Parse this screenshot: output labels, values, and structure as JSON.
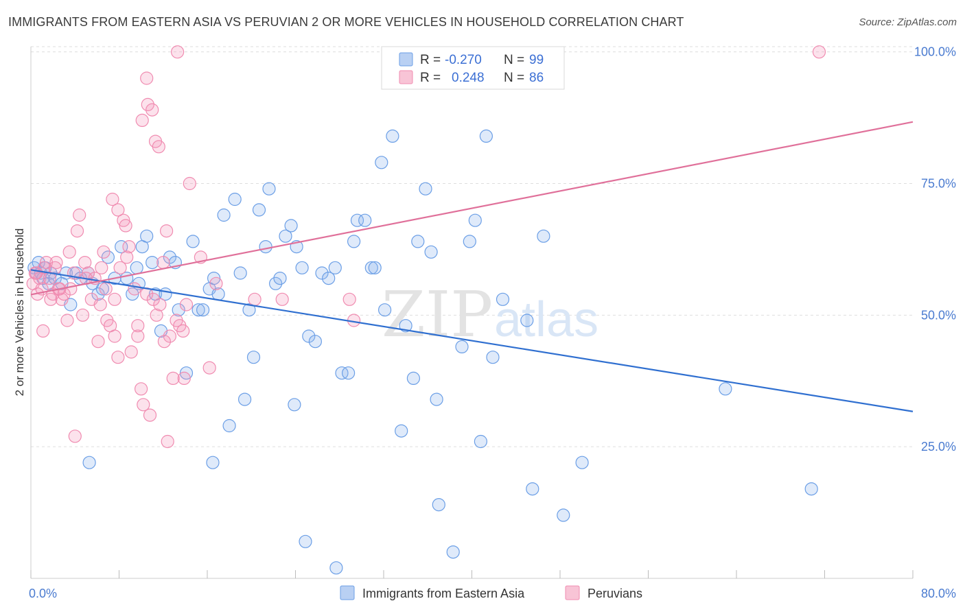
{
  "title": "IMMIGRANTS FROM EASTERN ASIA VS PERUVIAN 2 OR MORE VEHICLES IN HOUSEHOLD CORRELATION CHART",
  "source": "Source: ZipAtlas.com",
  "watermark": {
    "zip": "ZIP",
    "atlas": "atlas"
  },
  "colors": {
    "blue": "#6a9ee6",
    "blue_line": "#2f6fd0",
    "pink": "#f08bb0",
    "pink_line": "#e0709a",
    "grid": "#dddddd",
    "axis_label": "#4a7bd0"
  },
  "legend": {
    "rows": [
      {
        "r_label": "R =",
        "r_value": "-0.270",
        "n_label": "N =",
        "n_value": "99",
        "color": "blue"
      },
      {
        "r_label": "R =",
        "r_value": "0.248",
        "n_label": "N =",
        "n_value": "86",
        "color": "pink"
      }
    ]
  },
  "chart_data": {
    "type": "scatter",
    "title": "IMMIGRANTS FROM EASTERN ASIA VS PERUVIAN 2 OR MORE VEHICLES IN HOUSEHOLD CORRELATION CHART",
    "xlabel": "",
    "ylabel": "2 or more Vehicles in Household",
    "xlim": [
      0,
      80
    ],
    "ylim": [
      0,
      101
    ],
    "x_tick_labels": [
      "0.0%",
      "80.0%"
    ],
    "y_ticks": [
      25,
      50,
      75,
      100
    ],
    "y_tick_labels": [
      "25.0%",
      "50.0%",
      "75.0%",
      "100.0%"
    ],
    "grid": true,
    "legend_position": "bottom",
    "series": [
      {
        "name": "Immigrants from Eastern Asia",
        "color": "blue",
        "trend": [
          [
            0,
            58.6
          ],
          [
            80,
            31.7
          ]
        ],
        "points": [
          [
            0.3,
            59
          ],
          [
            0.5,
            58
          ],
          [
            0.7,
            60
          ],
          [
            0.9,
            58
          ],
          [
            1.1,
            57
          ],
          [
            1.3,
            59
          ],
          [
            1.6,
            56
          ],
          [
            1.8,
            58
          ],
          [
            2.2,
            57
          ],
          [
            2.8,
            56
          ],
          [
            3.2,
            58
          ],
          [
            3.6,
            52
          ],
          [
            4.1,
            58
          ],
          [
            4.5,
            57
          ],
          [
            5.2,
            58
          ],
          [
            5.6,
            56
          ],
          [
            6.1,
            54
          ],
          [
            6.5,
            55
          ],
          [
            7.0,
            61
          ],
          [
            7.6,
            57
          ],
          [
            8.2,
            63
          ],
          [
            8.7,
            57
          ],
          [
            9.2,
            54
          ],
          [
            9.6,
            59
          ],
          [
            10.1,
            63
          ],
          [
            10.5,
            65
          ],
          [
            11.0,
            60
          ],
          [
            11.3,
            54
          ],
          [
            11.8,
            47
          ],
          [
            12.2,
            54
          ],
          [
            12.6,
            61
          ],
          [
            13.1,
            60
          ],
          [
            13.4,
            51
          ],
          [
            14.1,
            39
          ],
          [
            14.7,
            64
          ],
          [
            15.2,
            51
          ],
          [
            15.6,
            51
          ],
          [
            16.2,
            55
          ],
          [
            16.6,
            57
          ],
          [
            17.0,
            54
          ],
          [
            17.5,
            69
          ],
          [
            18.0,
            29
          ],
          [
            18.5,
            72
          ],
          [
            19.0,
            58
          ],
          [
            19.4,
            34
          ],
          [
            19.8,
            51
          ],
          [
            20.2,
            42
          ],
          [
            20.7,
            70
          ],
          [
            21.3,
            63
          ],
          [
            21.6,
            74
          ],
          [
            22.2,
            56
          ],
          [
            22.6,
            57
          ],
          [
            23.1,
            65
          ],
          [
            23.6,
            67
          ],
          [
            23.9,
            33
          ],
          [
            24.1,
            63
          ],
          [
            24.6,
            59
          ],
          [
            25.2,
            46
          ],
          [
            25.8,
            45
          ],
          [
            26.4,
            58
          ],
          [
            27.0,
            57
          ],
          [
            27.6,
            59
          ],
          [
            28.2,
            39
          ],
          [
            28.8,
            39
          ],
          [
            29.3,
            64
          ],
          [
            29.6,
            68
          ],
          [
            30.3,
            68
          ],
          [
            30.9,
            59
          ],
          [
            31.2,
            59
          ],
          [
            31.8,
            79
          ],
          [
            32.1,
            51
          ],
          [
            32.8,
            84
          ],
          [
            33.6,
            28
          ],
          [
            34.0,
            48
          ],
          [
            34.7,
            38
          ],
          [
            35.1,
            64
          ],
          [
            35.8,
            74
          ],
          [
            36.3,
            62
          ],
          [
            36.8,
            34
          ],
          [
            37.0,
            14
          ],
          [
            38.3,
            5
          ],
          [
            39.1,
            44
          ],
          [
            39.8,
            64
          ],
          [
            40.3,
            68
          ],
          [
            40.8,
            26
          ],
          [
            41.3,
            84
          ],
          [
            41.9,
            42
          ],
          [
            42.8,
            53
          ],
          [
            45.0,
            49
          ],
          [
            45.5,
            17
          ],
          [
            46.5,
            65
          ],
          [
            48.3,
            12
          ],
          [
            50.0,
            22
          ],
          [
            63.0,
            36
          ],
          [
            70.8,
            17
          ],
          [
            9.8,
            56
          ],
          [
            24.9,
            7
          ],
          [
            27.7,
            2
          ],
          [
            5.3,
            22
          ],
          [
            16.5,
            22
          ]
        ]
      },
      {
        "name": "Peruvians",
        "color": "pink",
        "trend": [
          [
            0,
            53.9
          ],
          [
            80,
            86.7
          ]
        ],
        "points": [
          [
            0.2,
            56
          ],
          [
            0.4,
            58
          ],
          [
            0.6,
            54
          ],
          [
            0.8,
            57
          ],
          [
            1.0,
            55
          ],
          [
            1.2,
            59
          ],
          [
            1.4,
            60
          ],
          [
            1.7,
            57
          ],
          [
            2.0,
            54
          ],
          [
            2.3,
            60
          ],
          [
            2.5,
            55
          ],
          [
            2.8,
            53
          ],
          [
            3.0,
            54
          ],
          [
            3.3,
            49
          ],
          [
            3.6,
            55
          ],
          [
            3.9,
            58
          ],
          [
            4.2,
            66
          ],
          [
            4.4,
            69
          ],
          [
            4.7,
            50
          ],
          [
            4.9,
            60
          ],
          [
            5.2,
            58
          ],
          [
            5.5,
            53
          ],
          [
            5.8,
            57
          ],
          [
            6.1,
            45
          ],
          [
            6.3,
            52
          ],
          [
            6.6,
            62
          ],
          [
            6.9,
            49
          ],
          [
            7.2,
            48
          ],
          [
            7.4,
            72
          ],
          [
            7.6,
            46
          ],
          [
            7.9,
            70
          ],
          [
            8.1,
            59
          ],
          [
            8.4,
            68
          ],
          [
            8.6,
            67
          ],
          [
            8.9,
            63
          ],
          [
            9.1,
            43
          ],
          [
            9.4,
            55
          ],
          [
            9.7,
            46
          ],
          [
            10.0,
            36
          ],
          [
            10.2,
            33
          ],
          [
            10.5,
            54
          ],
          [
            10.8,
            31
          ],
          [
            11.1,
            53
          ],
          [
            11.4,
            50
          ],
          [
            11.7,
            52
          ],
          [
            12.0,
            60
          ],
          [
            12.3,
            66
          ],
          [
            12.6,
            46
          ],
          [
            12.9,
            38
          ],
          [
            13.2,
            49
          ],
          [
            13.5,
            48
          ],
          [
            13.8,
            47
          ],
          [
            14.1,
            52
          ],
          [
            14.4,
            75
          ],
          [
            7.9,
            42
          ],
          [
            10.1,
            87
          ],
          [
            10.6,
            90
          ],
          [
            10.5,
            95
          ],
          [
            11.0,
            89
          ],
          [
            11.3,
            83
          ],
          [
            11.6,
            82
          ],
          [
            12.4,
            26
          ],
          [
            13.3,
            100
          ],
          [
            15.4,
            61
          ],
          [
            16.2,
            40
          ],
          [
            16.8,
            56
          ],
          [
            20.3,
            53
          ],
          [
            22.8,
            53
          ],
          [
            28.9,
            53
          ],
          [
            29.3,
            49
          ],
          [
            4.0,
            27
          ],
          [
            1.1,
            47
          ],
          [
            71.5,
            100
          ],
          [
            2.2,
            59
          ],
          [
            0.5,
            58
          ],
          [
            6.4,
            59
          ],
          [
            8.7,
            61
          ],
          [
            9.7,
            48
          ],
          [
            12.1,
            45
          ],
          [
            13.9,
            38
          ],
          [
            3.5,
            62
          ],
          [
            7.6,
            53
          ],
          [
            5.0,
            57
          ],
          [
            2.6,
            55
          ],
          [
            1.8,
            53
          ],
          [
            6.8,
            55
          ]
        ]
      }
    ]
  },
  "bottom_legend": [
    {
      "label": "Immigrants from Eastern Asia",
      "color": "blue"
    },
    {
      "label": "Peruvians",
      "color": "pink"
    }
  ]
}
